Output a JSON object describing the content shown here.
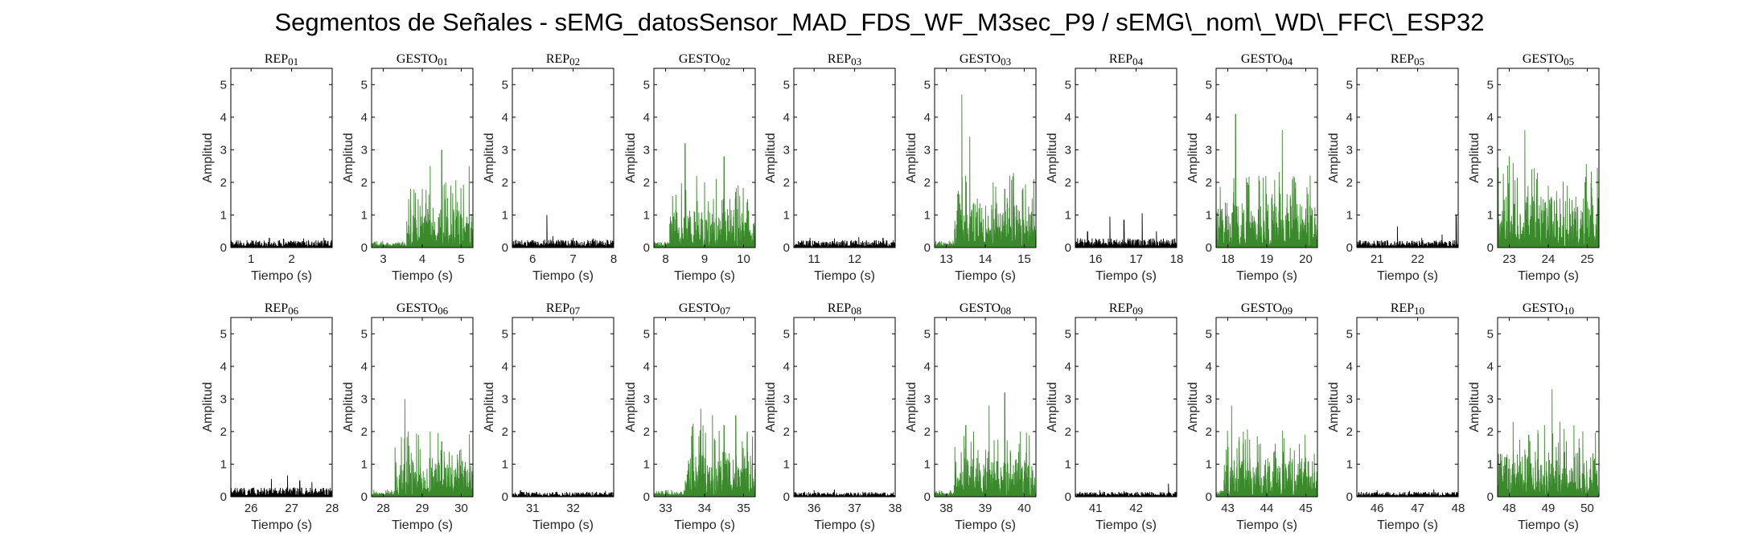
{
  "title": "Segmentos de Señales - sEMG_datosSensor_MAD_FDS_WF_M3sec_P9 / sEMG\\_nom\\_WD\\_FFC\\_ESP32",
  "colors": {
    "rep": "#000000",
    "gesto": "#3a8a2c",
    "axis": "#000000"
  },
  "chart_data": {
    "type": "line",
    "xlabel": "Tiempo (s)",
    "ylabel": "Amplitud",
    "ylim": [
      0,
      5.5
    ],
    "yticks": [
      0,
      1,
      2,
      3,
      4,
      5
    ],
    "grid": false,
    "panels": [
      {
        "title": "REP_01",
        "kind": "rep",
        "xlim": [
          0.5,
          3.0
        ],
        "xticks": [
          1,
          2
        ],
        "level": 0.12,
        "peaks": [
          [
            1.45,
            0.3
          ],
          [
            1.8,
            0.27
          ],
          [
            2.3,
            0.28
          ],
          [
            2.8,
            0.3
          ]
        ]
      },
      {
        "title": "GESTO_01",
        "kind": "gesto",
        "xlim": [
          2.7,
          5.3
        ],
        "xticks": [
          3,
          4,
          5
        ],
        "level": 0.6,
        "active": [
          3.6,
          5.3
        ],
        "peaks": [
          [
            3.7,
            1.8
          ],
          [
            4.0,
            1.8
          ],
          [
            4.2,
            2.5
          ],
          [
            4.5,
            3.0
          ],
          [
            4.6,
            2.0
          ],
          [
            4.9,
            1.4
          ],
          [
            5.2,
            2.5
          ]
        ]
      },
      {
        "title": "REP_02",
        "kind": "rep",
        "xlim": [
          5.5,
          8.0
        ],
        "xticks": [
          6,
          7,
          8
        ],
        "level": 0.13,
        "peaks": [
          [
            6.35,
            1.0
          ],
          [
            6.5,
            0.35
          ],
          [
            7.0,
            0.3
          ],
          [
            7.5,
            0.28
          ]
        ]
      },
      {
        "title": "GESTO_02",
        "kind": "gesto",
        "xlim": [
          7.7,
          10.3
        ],
        "xticks": [
          8,
          9,
          10
        ],
        "level": 0.6,
        "active": [
          8.1,
          10.3
        ],
        "peaks": [
          [
            8.5,
            3.2
          ],
          [
            8.8,
            2.2
          ],
          [
            9.0,
            2.0
          ],
          [
            9.3,
            2.1
          ],
          [
            9.5,
            2.8
          ],
          [
            9.8,
            1.7
          ]
        ]
      },
      {
        "title": "REP_03",
        "kind": "rep",
        "xlim": [
          10.5,
          13.0
        ],
        "xticks": [
          11,
          12
        ],
        "level": 0.12,
        "peaks": [
          [
            10.9,
            0.3
          ],
          [
            11.5,
            0.28
          ],
          [
            12.1,
            0.32
          ],
          [
            12.7,
            0.3
          ]
        ]
      },
      {
        "title": "GESTO_03",
        "kind": "gesto",
        "xlim": [
          12.7,
          15.3
        ],
        "xticks": [
          13,
          14,
          15
        ],
        "level": 0.7,
        "active": [
          13.2,
          15.3
        ],
        "peaks": [
          [
            13.4,
            4.7
          ],
          [
            13.6,
            3.4
          ],
          [
            13.8,
            1.5
          ],
          [
            14.2,
            2.0
          ],
          [
            14.5,
            1.8
          ],
          [
            14.8,
            1.3
          ],
          [
            15.2,
            1.5
          ]
        ]
      },
      {
        "title": "REP_04",
        "kind": "rep",
        "xlim": [
          15.5,
          18.0
        ],
        "xticks": [
          16,
          17,
          18
        ],
        "level": 0.15,
        "peaks": [
          [
            15.8,
            0.5
          ],
          [
            16.35,
            0.95
          ],
          [
            16.7,
            0.85
          ],
          [
            17.15,
            1.05
          ],
          [
            17.5,
            0.5
          ]
        ]
      },
      {
        "title": "GESTO_04",
        "kind": "gesto",
        "xlim": [
          17.7,
          20.3
        ],
        "xticks": [
          18,
          19,
          20
        ],
        "level": 0.7,
        "active": [
          17.7,
          20.3
        ],
        "peaks": [
          [
            18.2,
            4.1
          ],
          [
            18.5,
            2.0
          ],
          [
            18.8,
            2.2
          ],
          [
            19.4,
            3.6
          ],
          [
            19.6,
            1.6
          ],
          [
            20.0,
            1.2
          ]
        ]
      },
      {
        "title": "REP_05",
        "kind": "rep",
        "xlim": [
          20.5,
          23.0
        ],
        "xticks": [
          21,
          22
        ],
        "level": 0.12,
        "peaks": [
          [
            21.5,
            0.65
          ],
          [
            22.1,
            0.3
          ],
          [
            22.6,
            0.4
          ],
          [
            22.95,
            1.0
          ]
        ]
      },
      {
        "title": "GESTO_05",
        "kind": "gesto",
        "xlim": [
          22.7,
          25.3
        ],
        "xticks": [
          23,
          24,
          25
        ],
        "level": 0.8,
        "active": [
          22.7,
          25.3
        ],
        "peaks": [
          [
            23.0,
            2.8
          ],
          [
            23.1,
            2.6
          ],
          [
            23.4,
            3.6
          ],
          [
            23.7,
            2.1
          ],
          [
            24.0,
            1.9
          ],
          [
            24.3,
            1.5
          ],
          [
            24.7,
            1.1
          ],
          [
            25.0,
            0.6
          ]
        ]
      },
      {
        "title": "REP_06",
        "kind": "rep",
        "xlim": [
          25.5,
          28.0
        ],
        "xticks": [
          26,
          27,
          28
        ],
        "level": 0.15,
        "peaks": [
          [
            26.5,
            0.55
          ],
          [
            26.9,
            0.65
          ],
          [
            27.2,
            0.5
          ],
          [
            27.5,
            0.45
          ]
        ]
      },
      {
        "title": "GESTO_06",
        "kind": "gesto",
        "xlim": [
          27.7,
          30.3
        ],
        "xticks": [
          28,
          29,
          30
        ],
        "level": 0.6,
        "active": [
          28.3,
          30.3
        ],
        "peaks": [
          [
            28.55,
            3.0
          ],
          [
            28.9,
            1.9
          ],
          [
            29.2,
            2.0
          ],
          [
            29.5,
            1.7
          ],
          [
            29.9,
            1.3
          ]
        ]
      },
      {
        "title": "REP_07",
        "kind": "rep",
        "xlim": [
          30.5,
          33.0
        ],
        "xticks": [
          31,
          32
        ],
        "level": 0.08,
        "peaks": [
          [
            30.7,
            0.2
          ],
          [
            31.6,
            0.15
          ],
          [
            32.8,
            0.18
          ]
        ]
      },
      {
        "title": "GESTO_07",
        "kind": "gesto",
        "xlim": [
          32.7,
          35.3
        ],
        "xticks": [
          33,
          34,
          35
        ],
        "level": 0.7,
        "active": [
          33.5,
          35.3
        ],
        "peaks": [
          [
            33.9,
            2.7
          ],
          [
            34.2,
            2.5
          ],
          [
            34.5,
            2.2
          ],
          [
            34.8,
            2.5
          ],
          [
            35.1,
            2.0
          ]
        ]
      },
      {
        "title": "REP_08",
        "kind": "rep",
        "xlim": [
          35.5,
          38.0
        ],
        "xticks": [
          36,
          37,
          38
        ],
        "level": 0.08,
        "peaks": [
          [
            36.0,
            0.2
          ],
          [
            36.5,
            0.22
          ],
          [
            37.2,
            0.15
          ]
        ]
      },
      {
        "title": "GESTO_08",
        "kind": "gesto",
        "xlim": [
          37.7,
          40.3
        ],
        "xticks": [
          38,
          39,
          40
        ],
        "level": 0.6,
        "active": [
          38.2,
          40.3
        ],
        "peaks": [
          [
            38.5,
            2.2
          ],
          [
            38.7,
            2.0
          ],
          [
            39.1,
            2.8
          ],
          [
            39.5,
            3.2
          ],
          [
            39.9,
            2.0
          ]
        ]
      },
      {
        "title": "REP_09",
        "kind": "rep",
        "xlim": [
          40.5,
          43.0
        ],
        "xticks": [
          41,
          42
        ],
        "level": 0.08,
        "peaks": [
          [
            41.1,
            0.2
          ],
          [
            41.7,
            0.18
          ],
          [
            42.8,
            0.4
          ]
        ]
      },
      {
        "title": "GESTO_09",
        "kind": "gesto",
        "xlim": [
          42.7,
          45.3
        ],
        "xticks": [
          43,
          44,
          45
        ],
        "level": 0.6,
        "active": [
          42.9,
          45.3
        ],
        "peaks": [
          [
            43.1,
            2.8
          ],
          [
            43.4,
            2.0
          ],
          [
            43.8,
            1.6
          ],
          [
            44.2,
            1.4
          ],
          [
            44.6,
            1.5
          ],
          [
            45.0,
            1.2
          ]
        ]
      },
      {
        "title": "REP_10",
        "kind": "rep",
        "xlim": [
          45.5,
          48.0
        ],
        "xticks": [
          46,
          47,
          48
        ],
        "level": 0.08,
        "peaks": [
          [
            46.0,
            0.2
          ],
          [
            46.8,
            0.18
          ],
          [
            47.4,
            0.22
          ]
        ]
      },
      {
        "title": "GESTO_10",
        "kind": "gesto",
        "xlim": [
          47.7,
          50.3
        ],
        "xticks": [
          48,
          49,
          50
        ],
        "level": 0.7,
        "active": [
          47.7,
          50.3
        ],
        "peaks": [
          [
            48.1,
            2.3
          ],
          [
            48.5,
            1.9
          ],
          [
            48.9,
            2.2
          ],
          [
            49.1,
            3.3
          ],
          [
            49.3,
            2.3
          ],
          [
            49.8,
            1.5
          ]
        ]
      }
    ]
  }
}
